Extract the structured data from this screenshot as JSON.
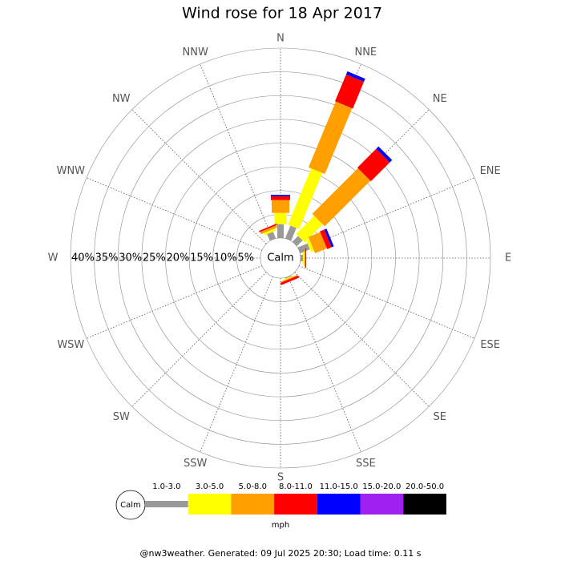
{
  "chart_data": {
    "type": "windrose",
    "title": "Wind rose for 18 Apr 2017",
    "directions": [
      "N",
      "NNE",
      "NE",
      "ENE",
      "E",
      "ESE",
      "SE",
      "SSE",
      "S",
      "SSW",
      "SW",
      "WSW",
      "W",
      "WNW",
      "NW",
      "NNW"
    ],
    "center_label": "Calm",
    "rlim": [
      0,
      40
    ],
    "rticks": [
      {
        "value": 5,
        "label": " 5%"
      },
      {
        "value": 10,
        "label": "10%"
      },
      {
        "value": 15,
        "label": "15%"
      },
      {
        "value": 20,
        "label": "20%"
      },
      {
        "value": 25,
        "label": "25%"
      },
      {
        "value": 30,
        "label": "30%"
      },
      {
        "value": 35,
        "label": "35%"
      },
      {
        "value": 40,
        "label": "40%"
      }
    ],
    "series": [
      {
        "name": "1.0-3.0",
        "color": "#999999",
        "values": [
          2.9,
          2.9,
          1.7,
          2.2,
          0.5,
          0,
          0,
          0.2,
          0,
          0,
          0,
          0,
          0,
          0,
          0,
          1.5
        ]
      },
      {
        "name": "3.0-5.0",
        "color": "#ffff00",
        "values": [
          2.4,
          12.8,
          5.4,
          0.7,
          0.3,
          0,
          0,
          0.2,
          0,
          0,
          0,
          0,
          0,
          0,
          0,
          0.5
        ]
      },
      {
        "name": "5.0-8.0",
        "color": "#ff9f00",
        "values": [
          2.7,
          15,
          13.6,
          2.7,
          0.2,
          0,
          0,
          0.2,
          0,
          0,
          0,
          0,
          0,
          0,
          0,
          0.5
        ]
      },
      {
        "name": "8.0-11.0",
        "color": "#ff0000",
        "values": [
          0.8,
          6.1,
          5.6,
          1,
          0.2,
          0,
          0,
          0.5,
          0,
          0,
          0,
          0,
          0,
          0,
          0,
          0.3
        ]
      },
      {
        "name": "11.0-15.0",
        "color": "#0000ff",
        "values": [
          0.3,
          0.7,
          0.7,
          0.5,
          0,
          0,
          0,
          0,
          0,
          0,
          0,
          0,
          0,
          0,
          0,
          0
        ]
      },
      {
        "name": "15.0-20.0",
        "color": "#a020f0",
        "values": [
          0,
          0,
          0,
          0,
          0,
          0,
          0,
          0,
          0,
          0,
          0,
          0,
          0,
          0,
          0,
          0
        ]
      },
      {
        "name": "20.0-50.0",
        "color": "#000000",
        "values": [
          0,
          0,
          0,
          0,
          0,
          0,
          0,
          0,
          0,
          0,
          0,
          0,
          0,
          0,
          0,
          0
        ]
      }
    ],
    "unit": "mph",
    "footer": "@nw3weather. Generated: 09 Jul 2025 20:30; Load time: 0.11 s"
  }
}
